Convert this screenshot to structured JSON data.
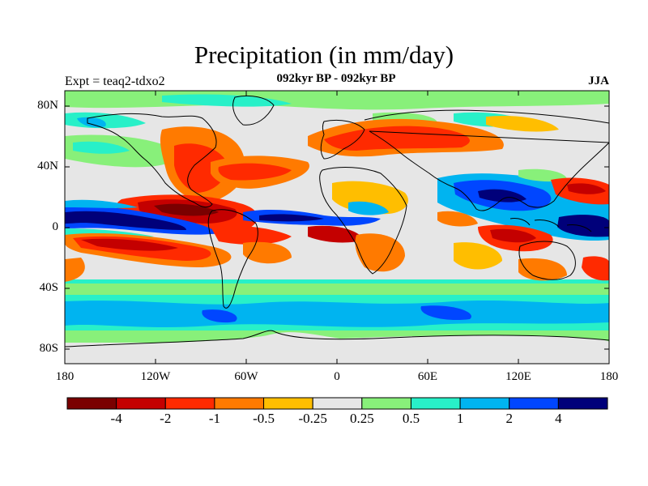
{
  "title": "Precipitation (in mm/day)",
  "left_label": "Expt = teaq2-tdxo2",
  "center_label": "092kyr BP - 092kyr BP",
  "right_label": "JJA",
  "lat_labels": [
    "80N",
    "40N",
    "0",
    "40S",
    "80S"
  ],
  "lon_labels": [
    "180",
    "120W",
    "60W",
    "0",
    "60E",
    "120E",
    "180"
  ],
  "colorbar": {
    "labels": [
      "-4",
      "-2",
      "-1",
      "-0.5",
      "-0.25",
      "0.25",
      "0.5",
      "1",
      "2",
      "4"
    ],
    "colors": [
      "#7a0000",
      "#c40000",
      "#ff2a00",
      "#ff7a00",
      "#ffbe00",
      "#e6e6e6",
      "#88f07a",
      "#28f0c8",
      "#00b4f0",
      "#0046ff",
      "#00007a"
    ]
  },
  "colors": {
    "background": "#e6e6e6",
    "coast": "#000000"
  }
}
